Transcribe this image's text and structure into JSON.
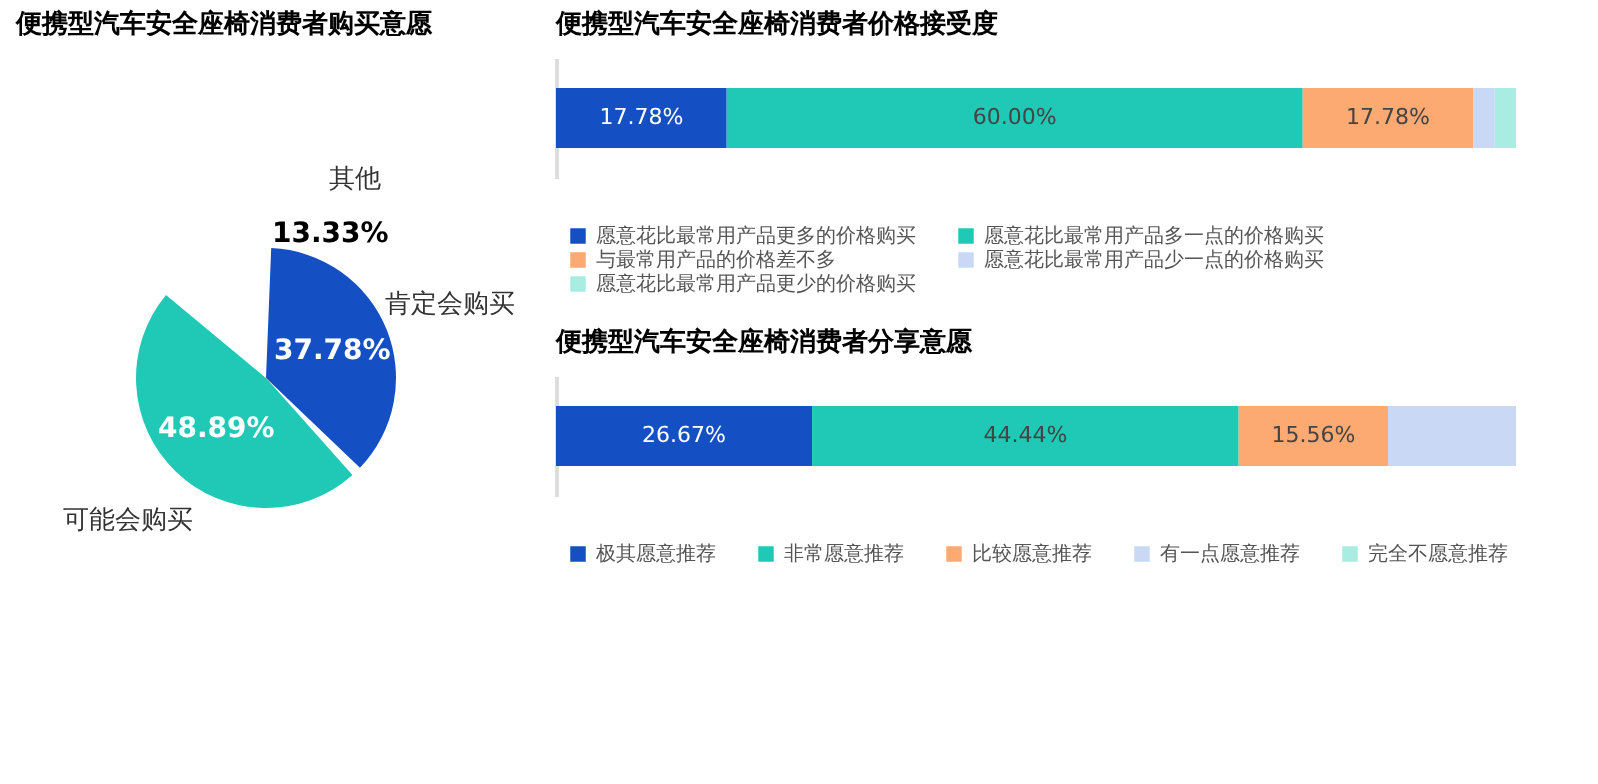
{
  "chart_data": [
    {
      "type": "pie",
      "title": "便携型汽车安全座椅消费者购买意愿",
      "categories": [
        "肯定会购买",
        "可能会购买",
        "其他"
      ],
      "values": [
        37.78,
        48.89,
        13.33
      ],
      "colors": [
        "#1450c4",
        "#20c9b5",
        "#ffffff"
      ],
      "value_labels": [
        "37.78%",
        "48.89%",
        "13.33%"
      ],
      "legend": false
    },
    {
      "type": "bar",
      "orientation": "horizontal",
      "stacked": true,
      "title": "便携型汽车安全座椅消费者价格接受度",
      "categories": [
        null
      ],
      "xlim": [
        0,
        100
      ],
      "tick_labels": false,
      "legend": "bottom",
      "series": [
        {
          "name": "愿意花比最常用产品更多的价格购买",
          "color": "#1450c4",
          "values": [
            17.78
          ],
          "value_labels": [
            "17.78%"
          ]
        },
        {
          "name": "愿意花比最常用产品多一点的价格购买",
          "color": "#20c9b5",
          "values": [
            60.0
          ],
          "value_labels": [
            "60.00%"
          ]
        },
        {
          "name": "与最常用产品的价格差不多",
          "color": "#fdaa72",
          "values": [
            17.78
          ],
          "value_labels": [
            "17.78%"
          ]
        },
        {
          "name": "愿意花比最常用产品少一点的价格购买",
          "color": "#c8d8f5",
          "values": [
            2.22
          ],
          "value_labels": [
            null
          ]
        },
        {
          "name": "愿意花比最常用产品更少的价格购买",
          "color": "#a8ece2",
          "values": [
            2.22
          ],
          "value_labels": [
            null
          ]
        }
      ]
    },
    {
      "type": "bar",
      "orientation": "horizontal",
      "stacked": true,
      "title": "便携型汽车安全座椅消费者分享意愿",
      "categories": [
        null
      ],
      "xlim": [
        0,
        100
      ],
      "tick_labels": false,
      "legend": "bottom",
      "series": [
        {
          "name": "极其愿意推荐",
          "color": "#1450c4",
          "values": [
            26.67
          ],
          "value_labels": [
            "26.67%"
          ]
        },
        {
          "name": "非常愿意推荐",
          "color": "#20c9b5",
          "values": [
            44.44
          ],
          "value_labels": [
            "44.44%"
          ]
        },
        {
          "name": "比较愿意推荐",
          "color": "#fdaa72",
          "values": [
            15.56
          ],
          "value_labels": [
            "15.56%"
          ]
        },
        {
          "name": "有一点愿意推荐",
          "color": "#c8d8f5",
          "values": [
            13.33
          ],
          "value_labels": [
            null
          ]
        },
        {
          "name": "完全不愿意推荐",
          "color": "#a8ece2",
          "values": [
            0
          ],
          "value_labels": [
            null
          ]
        }
      ]
    }
  ]
}
